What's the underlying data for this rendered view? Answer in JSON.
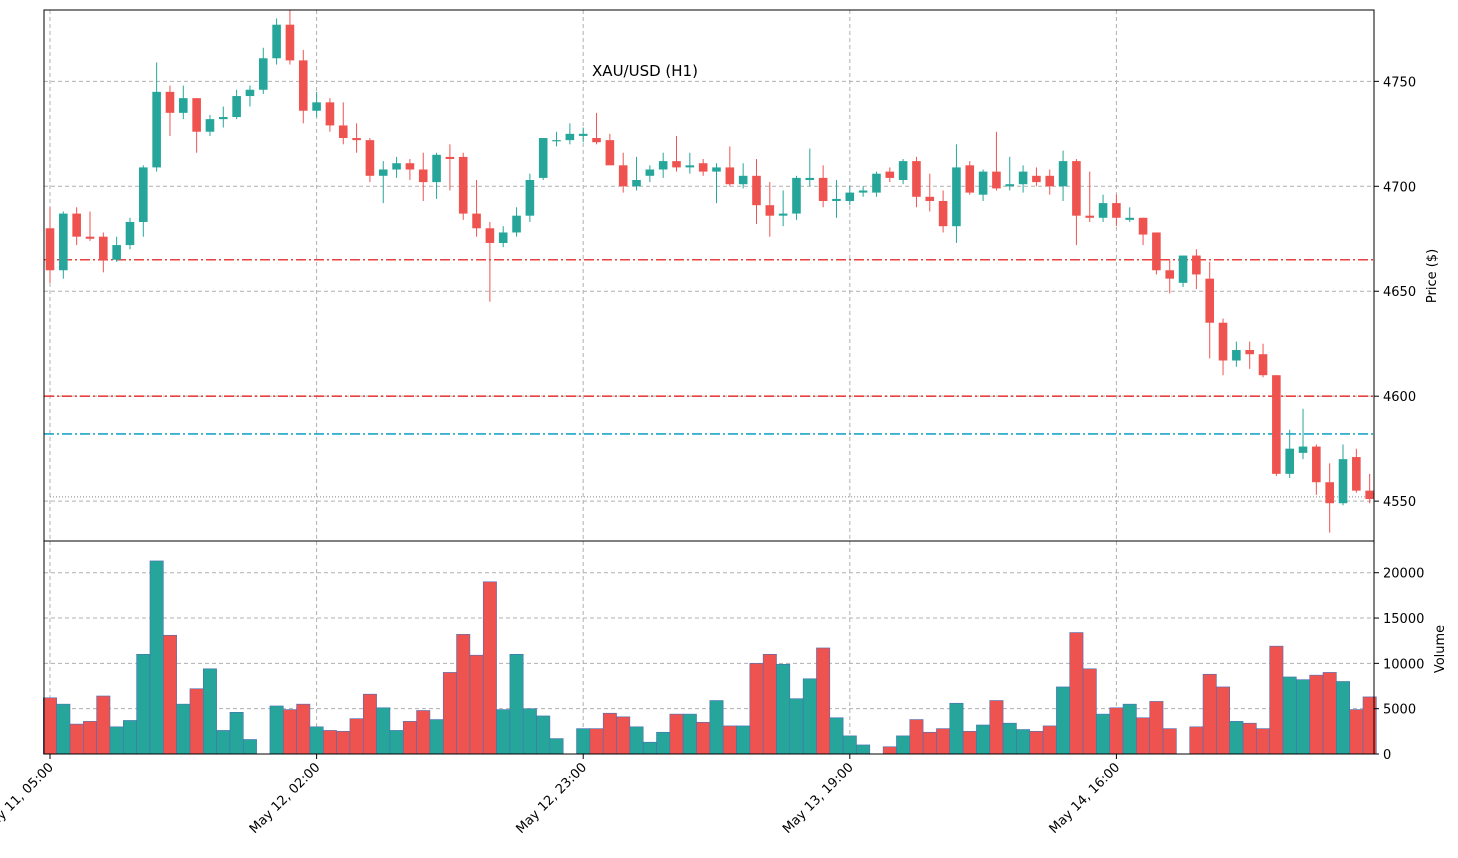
{
  "chart_data": {
    "type": "candlestick",
    "title": "XAU/USD (H1)",
    "price_panel": {
      "ylabel": "Price ($)",
      "ylim": [
        4531,
        4784
      ],
      "yticks": [
        4550,
        4600,
        4650,
        4700,
        4750
      ],
      "grid": true,
      "reference_lines": [
        {
          "value": 4665,
          "color": "#e8413f",
          "style": "dash-dot"
        },
        {
          "value": 4600,
          "color": "#e8413f",
          "style": "dash-dot"
        },
        {
          "value": 4582,
          "color": "#1fa6c9",
          "style": "dash-dot"
        },
        {
          "value": 4552,
          "color": "#888888",
          "style": "dotted"
        }
      ]
    },
    "volume_panel": {
      "ylabel": "Volume",
      "ylim": [
        0,
        23500
      ],
      "yticks": [
        0,
        5000,
        10000,
        15000,
        20000
      ],
      "grid": true
    },
    "x_tick_labels": [
      {
        "index": 0,
        "label": "May 11, 05:00"
      },
      {
        "index": 20,
        "label": "May 12, 02:00"
      },
      {
        "index": 40,
        "label": "May 12, 23:00"
      },
      {
        "index": 60,
        "label": "May 13, 19:00"
      },
      {
        "index": 80,
        "label": "May 14, 16:00"
      }
    ],
    "colors": {
      "up": "#26a69a",
      "down": "#ef5350",
      "volume_edge": "#4a6fb5"
    },
    "ohlc": [
      [
        4680,
        4690,
        4654,
        4660,
        6200
      ],
      [
        4660,
        4688,
        4656,
        4687,
        5500
      ],
      [
        4687,
        4690,
        4672,
        4676,
        3300
      ],
      [
        4676,
        4688,
        4674,
        4675,
        3600
      ],
      [
        4676,
        4678,
        4659,
        4665,
        6400
      ],
      [
        4665,
        4676,
        4664,
        4672,
        3000
      ],
      [
        4672,
        4685,
        4670,
        4683,
        3700
      ],
      [
        4683,
        4710,
        4676,
        4709,
        11000
      ],
      [
        4709,
        4759,
        4707,
        4745,
        21300
      ],
      [
        4745,
        4748,
        4724,
        4735,
        13100
      ],
      [
        4735,
        4748,
        4732,
        4742,
        5500
      ],
      [
        4742,
        4742,
        4716,
        4726,
        7200
      ],
      [
        4726,
        4734,
        4724,
        4732,
        9400
      ],
      [
        4732,
        4738,
        4728,
        4733,
        2600
      ],
      [
        4733,
        4746,
        4732,
        4743,
        4600
      ],
      [
        4743,
        4748,
        4738,
        4746,
        1600
      ],
      [
        4746,
        4766,
        4744,
        4761,
        0
      ],
      [
        4761,
        4780,
        4758,
        4777,
        5300
      ],
      [
        4777,
        4784,
        4758,
        4760,
        4900
      ],
      [
        4760,
        4765,
        4730,
        4736,
        5500
      ],
      [
        4736,
        4745,
        4733,
        4740,
        3000
      ],
      [
        4740,
        4742,
        4726,
        4729,
        2600
      ],
      [
        4729,
        4740,
        4720,
        4723,
        2500
      ],
      [
        4723,
        4730,
        4716,
        4722,
        3900
      ],
      [
        4722,
        4723,
        4702,
        4705,
        6600
      ],
      [
        4705,
        4712,
        4692,
        4708,
        5100
      ],
      [
        4708,
        4714,
        4704,
        4711,
        2600
      ],
      [
        4711,
        4713,
        4703,
        4708,
        3600
      ],
      [
        4708,
        4716,
        4693,
        4702,
        4800
      ],
      [
        4702,
        4716,
        4694,
        4715,
        3800
      ],
      [
        4714,
        4720,
        4698,
        4713,
        9000
      ],
      [
        4714,
        4716,
        4684,
        4687,
        13200
      ],
      [
        4687,
        4703,
        4676,
        4680,
        10900
      ],
      [
        4680,
        4683,
        4645,
        4673,
        19000
      ],
      [
        4673,
        4681,
        4671,
        4678,
        4900
      ],
      [
        4678,
        4690,
        4676,
        4686,
        11000
      ],
      [
        4686,
        4706,
        4683,
        4703,
        5000
      ],
      [
        4704,
        4723,
        4703,
        4723,
        4200
      ],
      [
        4722,
        4726,
        4719,
        4722,
        1700
      ],
      [
        4722,
        4730,
        4720,
        4725,
        0
      ],
      [
        4724,
        4728,
        4721,
        4725,
        2800
      ],
      [
        4723,
        4735,
        4720,
        4721,
        2800
      ],
      [
        4722,
        4725,
        4710,
        4710,
        4500
      ],
      [
        4710,
        4716,
        4697,
        4700,
        4100
      ],
      [
        4700,
        4714,
        4698,
        4703,
        3000
      ],
      [
        4705,
        4710,
        4702,
        4708,
        1300
      ],
      [
        4708,
        4716,
        4704,
        4712,
        2400
      ],
      [
        4712,
        4724,
        4707,
        4709,
        4400
      ],
      [
        4709,
        4716,
        4706,
        4710,
        4400
      ],
      [
        4711,
        4713,
        4705,
        4707,
        3500
      ],
      [
        4707,
        4711,
        4692,
        4709,
        5900
      ],
      [
        4709,
        4719,
        4700,
        4701,
        3100
      ],
      [
        4701,
        4711,
        4699,
        4705,
        3100
      ],
      [
        4705,
        4713,
        4682,
        4691,
        10000
      ],
      [
        4691,
        4702,
        4676,
        4686,
        11000
      ],
      [
        4686,
        4698,
        4681,
        4687,
        9900
      ],
      [
        4687,
        4705,
        4684,
        4704,
        6100
      ],
      [
        4703,
        4718,
        4700,
        4704,
        8300
      ],
      [
        4704,
        4710,
        4690,
        4693,
        11700
      ],
      [
        4693,
        4703,
        4685,
        4694,
        4000
      ],
      [
        4693,
        4700,
        4691,
        4697,
        2000
      ],
      [
        4697,
        4700,
        4695,
        4698,
        1000
      ],
      [
        4697,
        4707,
        4695,
        4706,
        0
      ],
      [
        4707,
        4709,
        4702,
        4704,
        800
      ],
      [
        4703,
        4713,
        4701,
        4712,
        2000
      ],
      [
        4712,
        4714,
        4690,
        4695,
        3800
      ],
      [
        4695,
        4706,
        4688,
        4693,
        2400
      ],
      [
        4693,
        4698,
        4678,
        4681,
        2800
      ],
      [
        4681,
        4720,
        4673,
        4709,
        5600
      ],
      [
        4710,
        4712,
        4696,
        4697,
        2500
      ],
      [
        4696,
        4708,
        4693,
        4707,
        3200
      ],
      [
        4707,
        4726,
        4698,
        4699,
        5900
      ],
      [
        4700,
        4714,
        4698,
        4701,
        3400
      ],
      [
        4701,
        4710,
        4697,
        4707,
        2700
      ],
      [
        4705,
        4709,
        4700,
        4702,
        2500
      ],
      [
        4705,
        4708,
        4696,
        4700,
        3100
      ],
      [
        4700,
        4717,
        4693,
        4712,
        7400
      ],
      [
        4712,
        4713,
        4672,
        4686,
        13400
      ],
      [
        4686,
        4707,
        4683,
        4685,
        9400
      ],
      [
        4685,
        4696,
        4683,
        4692,
        4400
      ],
      [
        4692,
        4696,
        4681,
        4685,
        5100
      ],
      [
        4684,
        4690,
        4683,
        4685,
        5500
      ],
      [
        4685,
        4685,
        4672,
        4677,
        4000
      ],
      [
        4678,
        4678,
        4658,
        4660,
        5800
      ],
      [
        4660,
        4665,
        4649,
        4656,
        2800
      ],
      [
        4654,
        4667,
        4652,
        4667,
        0
      ],
      [
        4667,
        4670,
        4651,
        4658,
        3000
      ],
      [
        4656,
        4664,
        4618,
        4635,
        8800
      ],
      [
        4635,
        4637,
        4610,
        4617,
        7400
      ],
      [
        4617,
        4626,
        4614,
        4622,
        3600
      ],
      [
        4622,
        4626,
        4613,
        4620,
        3400
      ],
      [
        4620,
        4625,
        4609,
        4610,
        2800
      ],
      [
        4610,
        4610,
        4562,
        4563,
        11900
      ],
      [
        4563,
        4584,
        4561,
        4575,
        8500
      ],
      [
        4573,
        4594,
        4570,
        4576,
        8200
      ],
      [
        4576,
        4577,
        4553,
        4559,
        8700
      ],
      [
        4559,
        4568,
        4535,
        4549,
        9000
      ],
      [
        4549,
        4577,
        4548,
        4570,
        8000
      ],
      [
        4571,
        4575,
        4554,
        4555,
        4900
      ],
      [
        4555,
        4563,
        4549,
        4551,
        6300
      ]
    ]
  }
}
